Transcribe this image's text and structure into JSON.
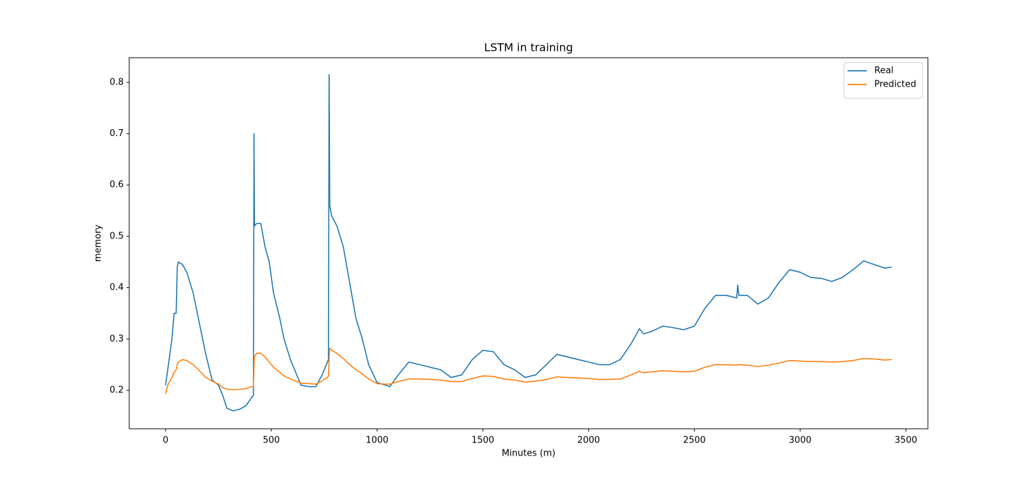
{
  "chart_data": {
    "type": "line",
    "title": "LSTM in training",
    "xlabel": "Minutes (m)",
    "ylabel": "memory",
    "x": [
      0,
      10,
      30,
      40,
      50,
      55,
      60,
      80,
      100,
      130,
      160,
      190,
      220,
      250,
      270,
      290,
      320,
      350,
      380,
      405,
      415,
      418,
      420,
      430,
      450,
      470,
      490,
      510,
      540,
      560,
      590,
      620,
      640,
      680,
      710,
      740,
      770,
      773,
      776,
      785,
      810,
      840,
      870,
      900,
      930,
      960,
      1000,
      1040,
      1060,
      1100,
      1150,
      1200,
      1250,
      1300,
      1350,
      1400,
      1450,
      1500,
      1550,
      1600,
      1650,
      1700,
      1750,
      1800,
      1850,
      1900,
      1950,
      2000,
      2050,
      2100,
      2150,
      2200,
      2240,
      2260,
      2300,
      2350,
      2400,
      2450,
      2500,
      2550,
      2600,
      2650,
      2700,
      2705,
      2710,
      2750,
      2800,
      2850,
      2900,
      2950,
      3000,
      3050,
      3100,
      3150,
      3200,
      3250,
      3300,
      3350,
      3400,
      3433
    ],
    "series": [
      {
        "name": "Real",
        "color": "#1f77b4",
        "values": [
          0.21,
          0.24,
          0.3,
          0.35,
          0.35,
          0.44,
          0.45,
          0.445,
          0.43,
          0.39,
          0.33,
          0.27,
          0.22,
          0.21,
          0.19,
          0.165,
          0.16,
          0.163,
          0.17,
          0.185,
          0.19,
          0.7,
          0.52,
          0.525,
          0.525,
          0.48,
          0.45,
          0.39,
          0.34,
          0.3,
          0.26,
          0.23,
          0.21,
          0.207,
          0.207,
          0.23,
          0.26,
          0.815,
          0.56,
          0.54,
          0.52,
          0.48,
          0.41,
          0.34,
          0.3,
          0.25,
          0.215,
          0.21,
          0.207,
          0.23,
          0.255,
          0.25,
          0.245,
          0.24,
          0.225,
          0.23,
          0.26,
          0.278,
          0.275,
          0.25,
          0.24,
          0.225,
          0.23,
          0.25,
          0.27,
          0.265,
          0.26,
          0.255,
          0.25,
          0.25,
          0.26,
          0.29,
          0.32,
          0.31,
          0.315,
          0.325,
          0.322,
          0.318,
          0.325,
          0.36,
          0.385,
          0.385,
          0.38,
          0.405,
          0.385,
          0.385,
          0.368,
          0.38,
          0.41,
          0.435,
          0.43,
          0.42,
          0.418,
          0.412,
          0.42,
          0.435,
          0.452,
          0.445,
          0.438,
          0.44
        ]
      },
      {
        "name": "Predicted",
        "color": "#ff7f0e",
        "values": [
          0.193,
          0.21,
          0.225,
          0.235,
          0.24,
          0.25,
          0.255,
          0.26,
          0.258,
          0.25,
          0.238,
          0.225,
          0.218,
          0.212,
          0.205,
          0.202,
          0.201,
          0.202,
          0.203,
          0.207,
          0.207,
          0.25,
          0.265,
          0.272,
          0.272,
          0.265,
          0.255,
          0.245,
          0.235,
          0.228,
          0.222,
          0.217,
          0.214,
          0.213,
          0.212,
          0.218,
          0.227,
          0.26,
          0.282,
          0.278,
          0.272,
          0.262,
          0.25,
          0.24,
          0.232,
          0.222,
          0.213,
          0.212,
          0.212,
          0.217,
          0.222,
          0.222,
          0.221,
          0.22,
          0.217,
          0.217,
          0.223,
          0.228,
          0.227,
          0.222,
          0.22,
          0.216,
          0.218,
          0.221,
          0.226,
          0.225,
          0.224,
          0.223,
          0.221,
          0.221,
          0.222,
          0.23,
          0.237,
          0.234,
          0.236,
          0.238,
          0.237,
          0.236,
          0.237,
          0.245,
          0.25,
          0.25,
          0.249,
          0.25,
          0.25,
          0.249,
          0.246,
          0.249,
          0.253,
          0.258,
          0.257,
          0.256,
          0.256,
          0.255,
          0.256,
          0.258,
          0.262,
          0.261,
          0.259,
          0.26
        ]
      }
    ],
    "xlim": [
      -172,
      3604
    ],
    "ylim": [
      0.125,
      0.848
    ],
    "xticks": [
      0,
      500,
      1000,
      1500,
      2000,
      2500,
      3000,
      3500
    ],
    "yticks": [
      0.2,
      0.3,
      0.4,
      0.5,
      0.6,
      0.7,
      0.8
    ],
    "legend": "upper right"
  }
}
